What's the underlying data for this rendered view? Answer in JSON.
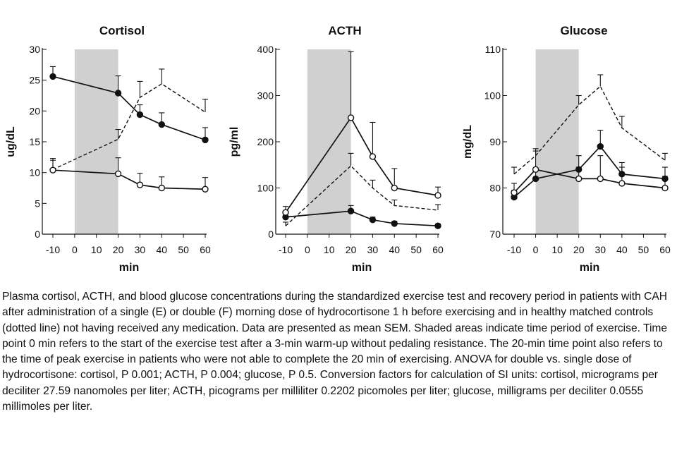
{
  "chart_data": [
    {
      "type": "line",
      "title": "Cortisol",
      "xlabel": "min",
      "ylabel": "ug/dL",
      "xlim": [
        -10,
        60
      ],
      "ylim": [
        0,
        30
      ],
      "xticks": [
        -10,
        0,
        10,
        20,
        30,
        40,
        50,
        60
      ],
      "yticks": [
        0,
        5,
        10,
        15,
        20,
        25,
        30
      ],
      "x": [
        -10,
        20,
        30,
        40,
        60
      ],
      "shaded_x": [
        0,
        20
      ],
      "series": [
        {
          "style": "solid",
          "marker": "filled",
          "values": [
            25.6,
            22.9,
            19.4,
            17.8,
            15.3
          ],
          "err": [
            1.6,
            2.8,
            1.6,
            1.9,
            2.0
          ]
        },
        {
          "style": "solid",
          "marker": "open",
          "values": [
            10.4,
            9.8,
            8.0,
            7.5,
            7.3
          ],
          "err": [
            1.6,
            2.6,
            1.9,
            1.8,
            1.9
          ]
        },
        {
          "style": "dashed",
          "marker": "none",
          "values": [
            10.5,
            15.4,
            22.2,
            24.4,
            19.8
          ],
          "err": [
            1.8,
            1.6,
            2.6,
            2.4,
            2.1
          ]
        }
      ]
    },
    {
      "type": "line",
      "title": "ACTH",
      "xlabel": "min",
      "ylabel": "pg/ml",
      "xlim": [
        -10,
        60
      ],
      "ylim": [
        0,
        400
      ],
      "xticks": [
        -10,
        0,
        10,
        20,
        30,
        40,
        50,
        60
      ],
      "yticks": [
        0,
        100,
        200,
        300,
        400
      ],
      "x": [
        -10,
        20,
        30,
        40,
        60
      ],
      "shaded_x": [
        0,
        20
      ],
      "series": [
        {
          "style": "solid",
          "marker": "filled",
          "values": [
            37,
            50,
            31,
            23,
            18
          ],
          "err": [
            9,
            12,
            6,
            5,
            4
          ]
        },
        {
          "style": "solid",
          "marker": "open",
          "values": [
            47,
            252,
            168,
            100,
            84
          ],
          "err": [
            13,
            143,
            74,
            42,
            18
          ]
        },
        {
          "style": "dashed",
          "marker": "none",
          "values": [
            18,
            148,
            100,
            62,
            52
          ],
          "err": [
            8,
            27,
            17,
            12,
            12
          ]
        }
      ]
    },
    {
      "type": "line",
      "title": "Glucose",
      "xlabel": "min",
      "ylabel": "mg/dL",
      "xlim": [
        -10,
        60
      ],
      "ylim": [
        70,
        110
      ],
      "xticks": [
        -10,
        0,
        10,
        20,
        30,
        40,
        50,
        60
      ],
      "yticks": [
        70,
        80,
        90,
        100,
        110
      ],
      "x": [
        -10,
        0,
        20,
        30,
        40,
        60
      ],
      "shaded_x": [
        0,
        20
      ],
      "series": [
        {
          "style": "solid",
          "marker": "filled",
          "values": [
            78,
            82,
            84,
            89,
            83,
            82
          ],
          "err": [
            1.5,
            2.0,
            3.0,
            3.5,
            2.5,
            2.5
          ]
        },
        {
          "style": "solid",
          "marker": "open",
          "values": [
            79,
            84,
            82,
            82,
            81,
            80
          ],
          "err": [
            2.0,
            4.0,
            2.5,
            5.0,
            3.5,
            2.5
          ]
        },
        {
          "style": "dashed",
          "marker": "none",
          "values": [
            83,
            87,
            98,
            102,
            93,
            86
          ],
          "err": [
            1.5,
            1.5,
            2.0,
            2.5,
            2.5,
            1.5
          ]
        }
      ]
    }
  ],
  "caption": "Plasma cortisol, ACTH, and blood glucose concentrations during the standardized exercise test and recovery period in patients with CAH after administration of a single (E) or double (F) morning dose of hydrocortisone 1 h before exercising and in healthy matched controls (dotted line) not having received any medication. Data are presented as mean SEM. Shaded areas indicate time period of exercise. Time point 0 min refers to the start of the exercise test after a 3-min warm-up without pedaling resistance. The 20-min time point also refers to the time of peak exercise in patients who were not able to complete the 20 min of exercising. ANOVA for double vs. single dose of hydrocortisone: cortisol, P 0.001; ACTH, P 0.004; glucose, P 0.5. Conversion factors for calculation of SI units: cortisol, micrograms per deciliter 27.59 nanomoles per liter; ACTH, picograms per milliliter 0.2202 picomoles per liter; glucose, milligrams per deciliter 0.0555 millimoles per liter.",
  "colors": {
    "shade": "#d0d0d0",
    "line": "#111111"
  }
}
